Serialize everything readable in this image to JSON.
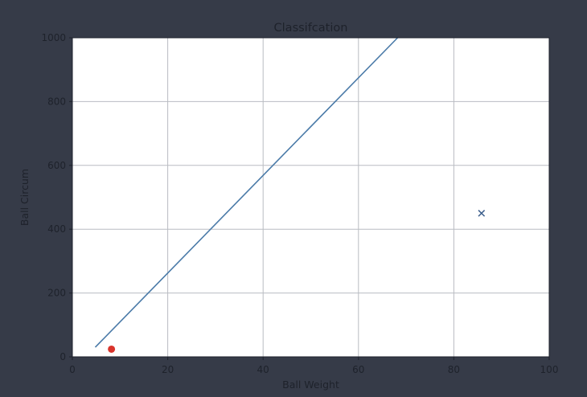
{
  "chart_data": {
    "type": "scatter",
    "title": "Classifcation",
    "xlabel": "Ball Weight",
    "ylabel": "Ball Circum",
    "xlim": [
      0,
      100
    ],
    "ylim": [
      0,
      1000
    ],
    "xticks": [
      "0",
      "20",
      "40",
      "60",
      "80",
      "100"
    ],
    "yticks": [
      "0",
      "200",
      "400",
      "600",
      "800",
      "1000"
    ],
    "grid": true,
    "series": [
      {
        "marker": "o",
        "color": "#d9342b",
        "points": [
          {
            "x": 8.2,
            "y": 24
          }
        ]
      },
      {
        "marker": "x",
        "color": "#3d5f8c",
        "points": [
          {
            "x": 85.8,
            "y": 450
          }
        ]
      }
    ],
    "lines": [
      {
        "color": "#4a7aa8",
        "points": [
          {
            "x": 4.8,
            "y": 30
          },
          {
            "x": 68.2,
            "y": 1000
          }
        ]
      }
    ]
  }
}
